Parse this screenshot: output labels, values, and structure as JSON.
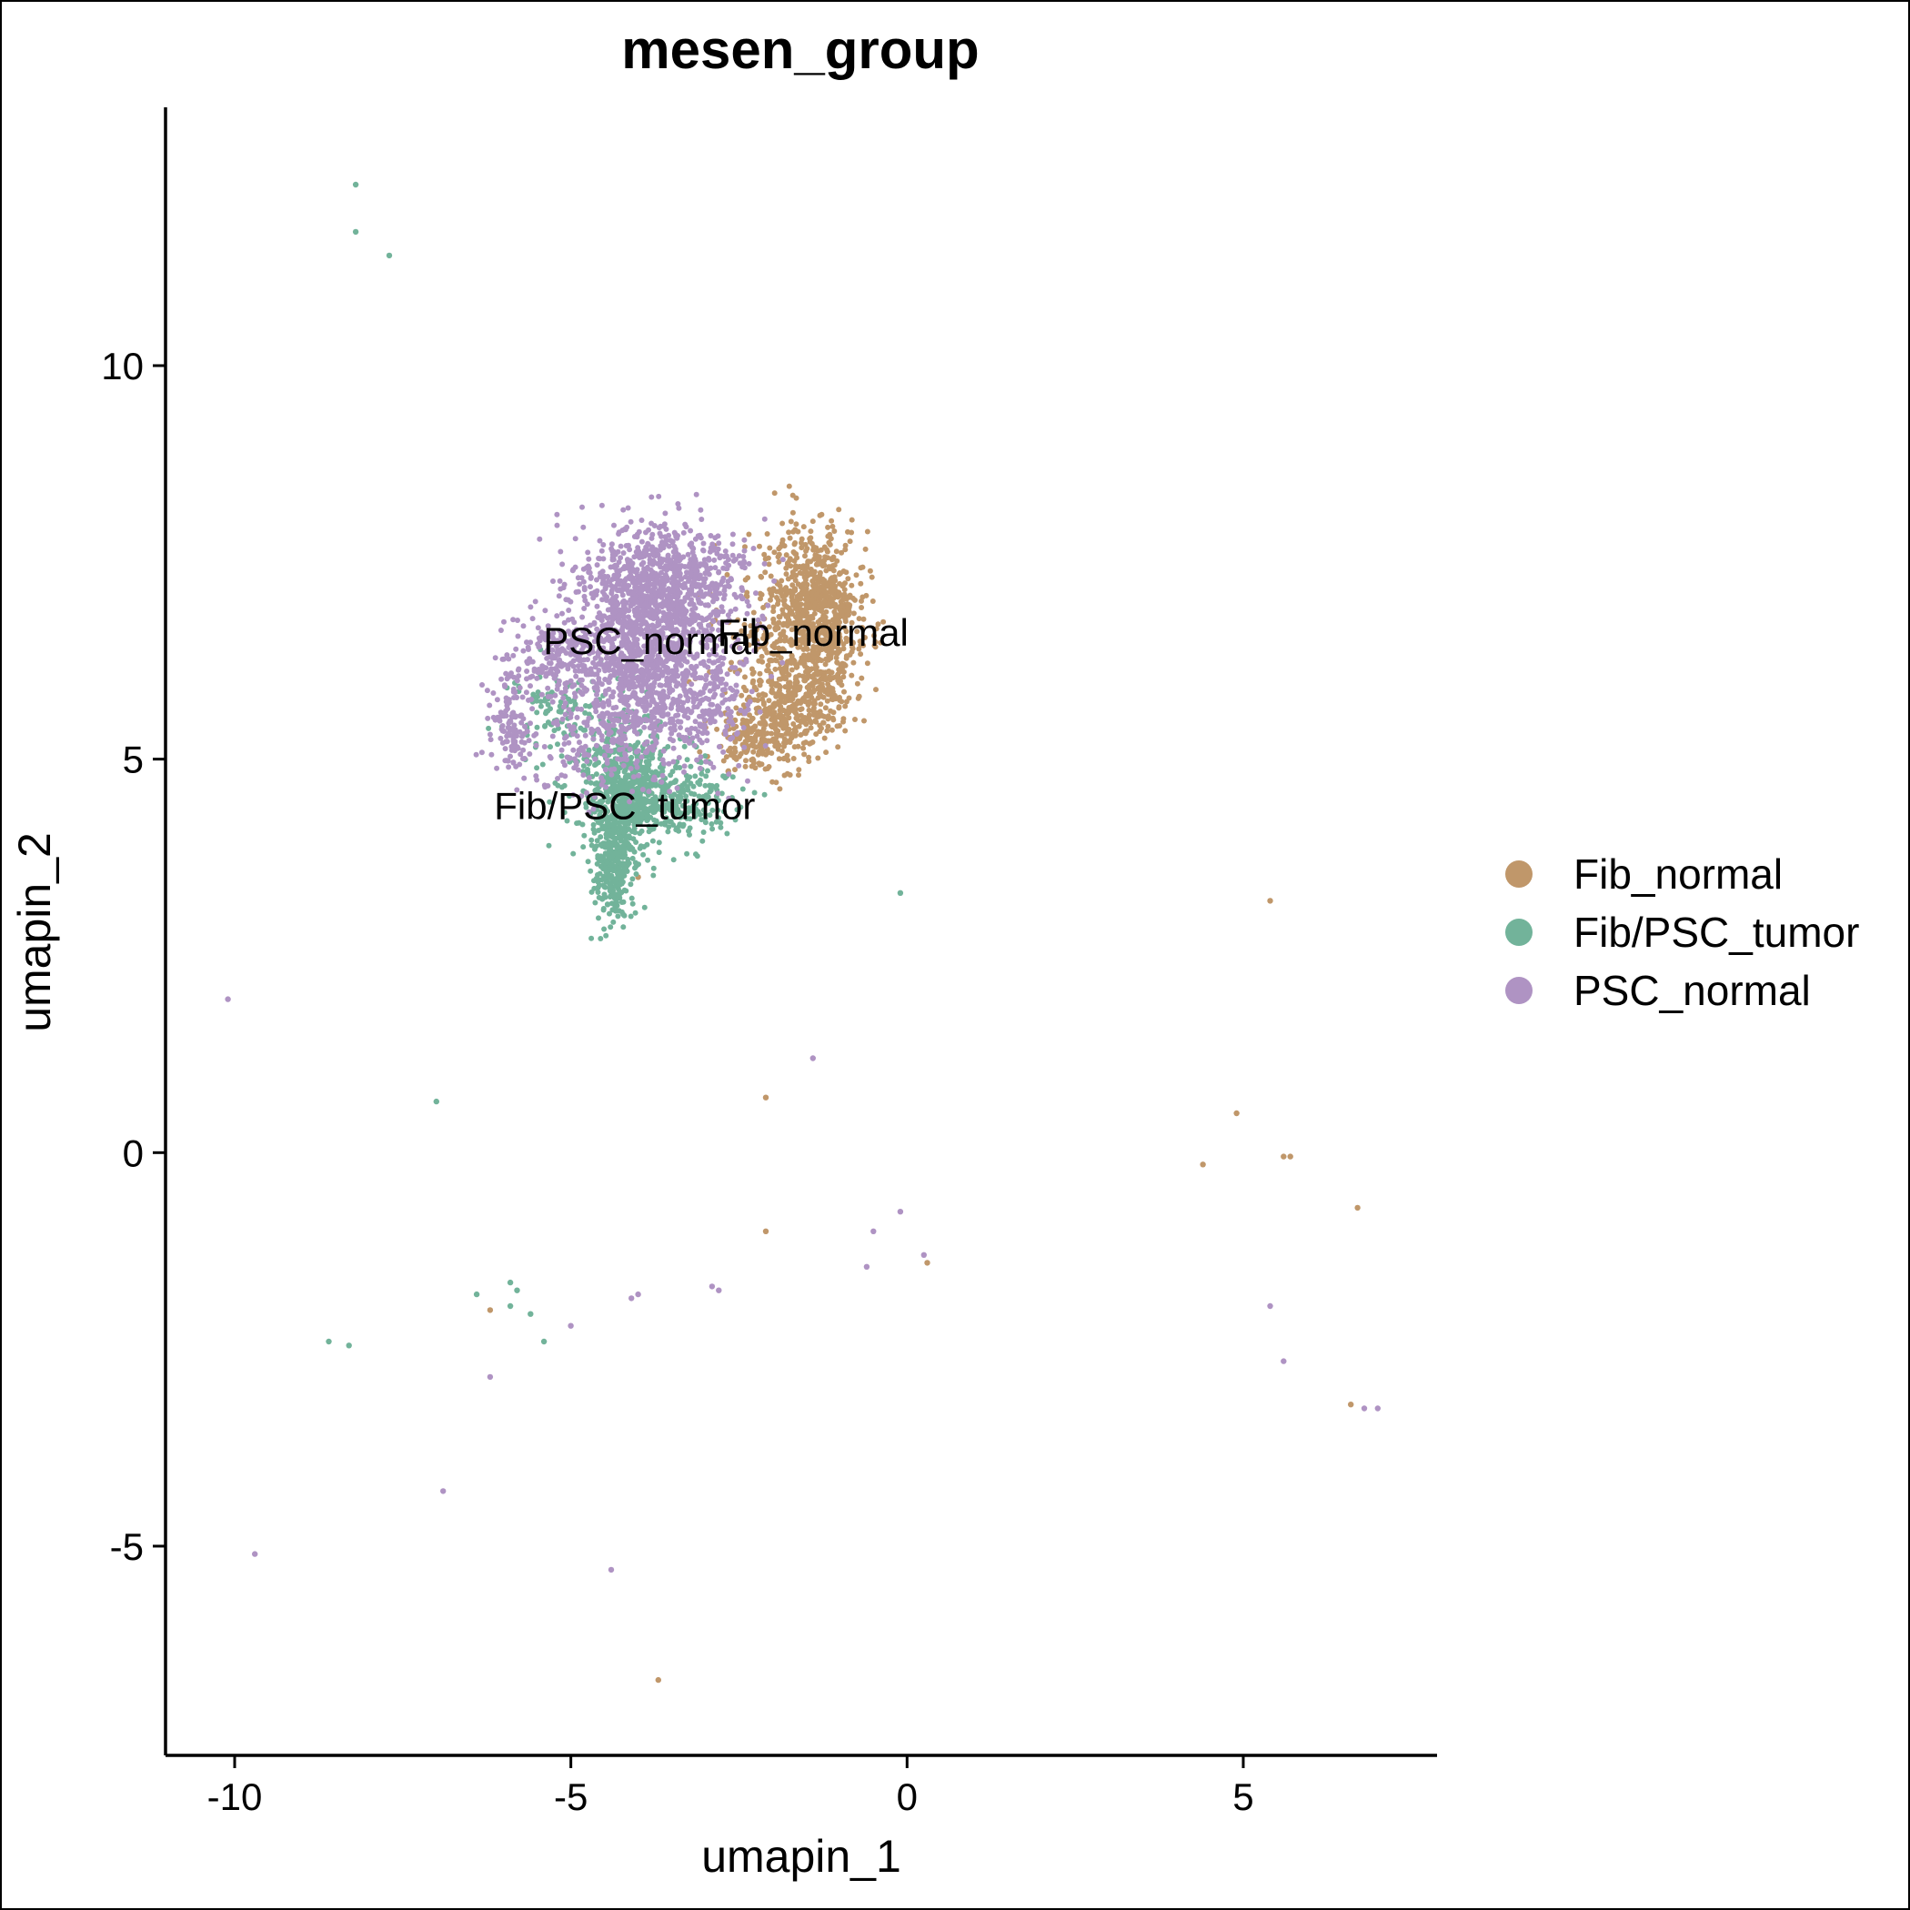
{
  "chart_data": {
    "type": "scatter",
    "title": "mesen_group",
    "xlabel": "umapin_1",
    "ylabel": "umapin_2",
    "xlim": [
      -11.0,
      8.0
    ],
    "ylim": [
      -7.7,
      13.2
    ],
    "xticks": [
      -10,
      -5,
      0,
      5
    ],
    "yticks": [
      -5,
      0,
      5,
      10
    ],
    "xtick_labels": [
      "-10",
      "-5",
      "0",
      "5"
    ],
    "ytick_labels": [
      "-5",
      "0",
      "5",
      "10"
    ],
    "legend_position": "right",
    "series": [
      {
        "name": "Fib_normal",
        "color": "#C0976A",
        "clusters": [
          {
            "cx": -1.4,
            "cy": 7.1,
            "sx": 0.35,
            "sy": 0.45,
            "n": 520
          },
          {
            "cx": -1.2,
            "cy": 6.3,
            "sx": 0.3,
            "sy": 0.5,
            "n": 300
          },
          {
            "cx": -1.7,
            "cy": 5.8,
            "sx": 0.3,
            "sy": 0.35,
            "n": 240
          },
          {
            "cx": -2.2,
            "cy": 5.3,
            "sx": 0.3,
            "sy": 0.25,
            "n": 240
          },
          {
            "cx": -2.0,
            "cy": 6.5,
            "sx": 0.4,
            "sy": 0.5,
            "n": 130
          }
        ],
        "outliers": [
          {
            "x": 5.4,
            "y": 3.2
          },
          {
            "x": 4.9,
            "y": 0.5
          },
          {
            "x": 4.4,
            "y": -0.15
          },
          {
            "x": 5.6,
            "y": -0.05
          },
          {
            "x": 5.7,
            "y": -0.05
          },
          {
            "x": 6.7,
            "y": -0.7
          },
          {
            "x": 6.6,
            "y": -3.2
          },
          {
            "x": -2.1,
            "y": 0.7
          },
          {
            "x": -2.1,
            "y": -1.0
          },
          {
            "x": 0.3,
            "y": -1.4
          },
          {
            "x": -6.2,
            "y": -2.0
          },
          {
            "x": -3.7,
            "y": -6.7
          },
          {
            "x": -4.0,
            "y": 3.5
          }
        ]
      },
      {
        "name": "Fib/PSC_tumor",
        "color": "#72B39A",
        "clusters": [
          {
            "cx": -4.2,
            "cy": 4.6,
            "sx": 0.35,
            "sy": 0.45,
            "n": 650
          },
          {
            "cx": -4.35,
            "cy": 3.6,
            "sx": 0.15,
            "sy": 0.35,
            "n": 300
          },
          {
            "cx": -3.4,
            "cy": 4.5,
            "sx": 0.4,
            "sy": 0.25,
            "n": 220
          },
          {
            "cx": -5.2,
            "cy": 5.6,
            "sx": 0.35,
            "sy": 0.3,
            "n": 100
          }
        ],
        "outliers": [
          {
            "x": -8.2,
            "y": 12.3
          },
          {
            "x": -8.2,
            "y": 11.7
          },
          {
            "x": -7.7,
            "y": 11.4
          },
          {
            "x": -0.1,
            "y": 3.3
          },
          {
            "x": -7.0,
            "y": 0.65
          },
          {
            "x": -6.4,
            "y": -1.8
          },
          {
            "x": -5.9,
            "y": -1.65
          },
          {
            "x": -5.8,
            "y": -1.75
          },
          {
            "x": -5.9,
            "y": -1.95
          },
          {
            "x": -5.6,
            "y": -2.05
          },
          {
            "x": -5.4,
            "y": -2.4
          },
          {
            "x": -8.6,
            "y": -2.4
          },
          {
            "x": -8.3,
            "y": -2.45
          }
        ]
      },
      {
        "name": "PSC_normal",
        "color": "#AF93C3",
        "clusters": [
          {
            "cx": -3.7,
            "cy": 7.2,
            "sx": 0.6,
            "sy": 0.4,
            "n": 900
          },
          {
            "cx": -4.1,
            "cy": 6.1,
            "sx": 0.5,
            "sy": 0.6,
            "n": 900
          },
          {
            "cx": -3.1,
            "cy": 5.9,
            "sx": 0.4,
            "sy": 0.5,
            "n": 300
          },
          {
            "cx": -5.3,
            "cy": 6.3,
            "sx": 0.35,
            "sy": 0.3,
            "n": 180
          },
          {
            "cx": -5.9,
            "cy": 5.4,
            "sx": 0.2,
            "sy": 0.3,
            "n": 120
          },
          {
            "cx": -4.8,
            "cy": 5.1,
            "sx": 0.4,
            "sy": 0.3,
            "n": 80
          }
        ],
        "outliers": [
          {
            "x": -10.1,
            "y": 1.95
          },
          {
            "x": -1.4,
            "y": 1.2
          },
          {
            "x": -0.1,
            "y": -0.75
          },
          {
            "x": -0.5,
            "y": -1.0
          },
          {
            "x": -0.6,
            "y": -1.45
          },
          {
            "x": 0.25,
            "y": -1.3
          },
          {
            "x": -4.0,
            "y": -1.8
          },
          {
            "x": -4.1,
            "y": -1.85
          },
          {
            "x": -2.9,
            "y": -1.7
          },
          {
            "x": -2.8,
            "y": -1.75
          },
          {
            "x": -5.0,
            "y": -2.2
          },
          {
            "x": -6.2,
            "y": -2.85
          },
          {
            "x": -6.9,
            "y": -4.3
          },
          {
            "x": -9.7,
            "y": -5.1
          },
          {
            "x": -4.4,
            "y": -5.3
          },
          {
            "x": 5.4,
            "y": -1.95
          },
          {
            "x": 5.6,
            "y": -2.65
          },
          {
            "x": 6.8,
            "y": -3.25
          },
          {
            "x": 7.0,
            "y": -3.25
          }
        ]
      }
    ],
    "cluster_labels": [
      {
        "text": "PSC_normal",
        "x": -3.8,
        "y": 6.5
      },
      {
        "text": "Fib_normal",
        "x": -1.4,
        "y": 6.6
      },
      {
        "text": "Fib/PSC_tumor",
        "x": -4.2,
        "y": 4.4
      }
    ]
  }
}
